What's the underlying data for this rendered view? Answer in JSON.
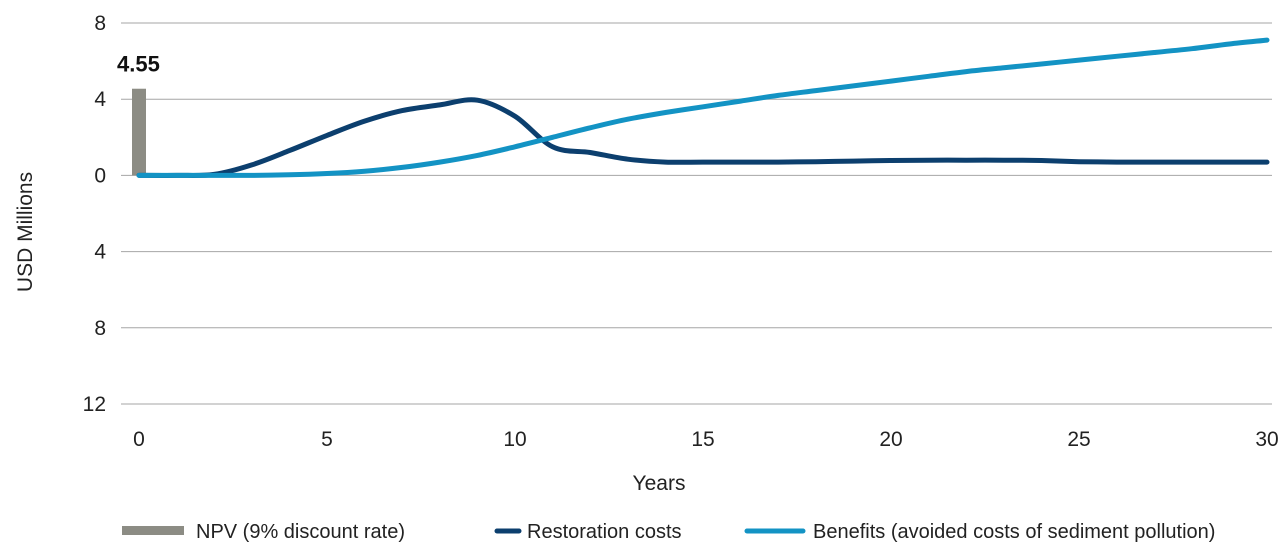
{
  "chart_data": {
    "type": "line",
    "xlabel": "Years",
    "ylabel": "USD Millions",
    "xlim": [
      0,
      30
    ],
    "ylim": [
      -12,
      8
    ],
    "x_ticks": [
      0,
      5,
      10,
      15,
      20,
      25,
      30
    ],
    "y_ticks": [
      {
        "value": 8,
        "label": "8"
      },
      {
        "value": 4,
        "label": "4"
      },
      {
        "value": 0,
        "label": "0"
      },
      {
        "value": -4,
        "label": "4"
      },
      {
        "value": -8,
        "label": "8"
      },
      {
        "value": -12,
        "label": "12"
      }
    ],
    "grid": true,
    "legend_position": "bottom",
    "npv_bar": {
      "name": "NPV (9% discount rate)",
      "x": 0,
      "value": 4.55,
      "label": "4.55",
      "color": "#8c8c84"
    },
    "series": [
      {
        "name": "Restoration costs",
        "color": "#0c3f6e",
        "x": [
          0,
          1,
          2,
          3,
          4,
          5,
          6,
          7,
          8,
          9,
          10,
          11,
          12,
          13,
          14,
          15,
          16,
          17,
          18,
          19,
          20,
          21,
          22,
          23,
          24,
          25,
          26,
          27,
          28,
          29,
          30
        ],
        "values": [
          0,
          0,
          0.05,
          0.55,
          1.3,
          2.1,
          2.85,
          3.4,
          3.7,
          3.95,
          3.1,
          1.5,
          1.2,
          0.85,
          0.7,
          0.7,
          0.7,
          0.7,
          0.72,
          0.75,
          0.78,
          0.8,
          0.8,
          0.8,
          0.78,
          0.72,
          0.7,
          0.7,
          0.7,
          0.7,
          0.7
        ]
      },
      {
        "name": "Benefits (avoided costs of sediment pollution)",
        "color": "#1393c4",
        "x": [
          0,
          1,
          2,
          3,
          4,
          5,
          6,
          7,
          8,
          9,
          10,
          11,
          12,
          13,
          14,
          15,
          16,
          17,
          18,
          19,
          20,
          21,
          22,
          23,
          24,
          25,
          26,
          27,
          28,
          29,
          30
        ],
        "values": [
          0,
          0,
          0,
          0,
          0.03,
          0.1,
          0.22,
          0.42,
          0.7,
          1.05,
          1.5,
          2.0,
          2.5,
          2.95,
          3.3,
          3.6,
          3.9,
          4.2,
          4.45,
          4.7,
          4.95,
          5.2,
          5.45,
          5.65,
          5.85,
          6.05,
          6.25,
          6.45,
          6.65,
          6.9,
          7.1
        ]
      }
    ]
  }
}
